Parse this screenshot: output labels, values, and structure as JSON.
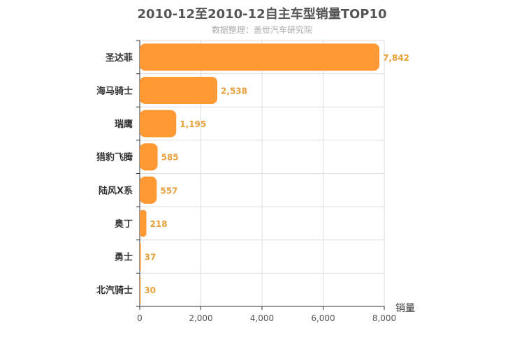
{
  "header": {
    "title": "2010-12至2010-12自主车型销量TOP10",
    "subtitle": "数据整理：盖世汽车研究院"
  },
  "chart_data": {
    "type": "bar",
    "orientation": "horizontal",
    "title": "2010-12至2010-12自主车型销量TOP10",
    "subtitle": "数据整理：盖世汽车研究院",
    "categories": [
      "圣达菲",
      "海马骑士",
      "瑞鹰",
      "猎豹飞腾",
      "陆风X系",
      "奥丁",
      "勇士",
      "北汽骑士"
    ],
    "values": [
      7842,
      2538,
      1195,
      585,
      557,
      218,
      37,
      30
    ],
    "value_labels": [
      "7,842",
      "2,538",
      "1,195",
      "585",
      "557",
      "218",
      "37",
      "30"
    ],
    "xlabel": "销量",
    "ylabel": "",
    "xlim": [
      0,
      8000
    ],
    "xticks": [
      0,
      2000,
      4000,
      6000,
      8000
    ],
    "xtick_labels": [
      "0",
      "2,000",
      "4,000",
      "6,000",
      "8,000"
    ],
    "grid": true,
    "colors": {
      "bar": "#FF9933",
      "label": "#E8A13A",
      "axis": "#333333",
      "grid": "#dddddd"
    }
  }
}
